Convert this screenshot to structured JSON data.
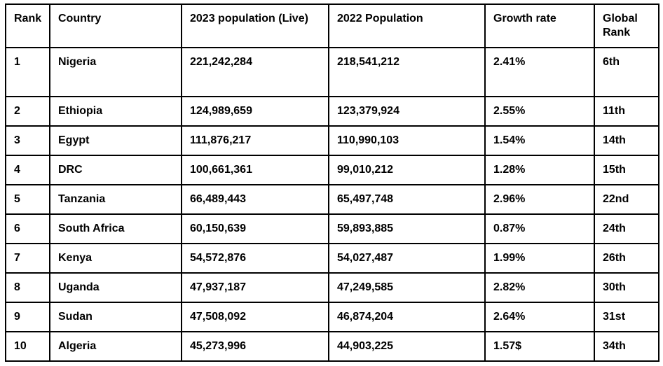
{
  "page": {
    "background_color": "#ffffff",
    "border_color": "#000000",
    "text_color": "#000000"
  },
  "table": {
    "title_semantic": "Top 10 African countries by population",
    "header_row": [
      "Rank",
      "Country",
      "2023 population (Live)",
      "2022 Population",
      "Growth rate",
      "Global Rank"
    ],
    "rows": [
      [
        "1",
        "Nigeria",
        "221,242,284",
        "218,541,212",
        "2.41%",
        "6th"
      ],
      [
        "2",
        "Ethiopia",
        "124,989,659",
        "123,379,924",
        "2.55%",
        "11th"
      ],
      [
        "3",
        "Egypt",
        "111,876,217",
        "110,990,103",
        "1.54%",
        "14th"
      ],
      [
        "4",
        "DRC",
        "100,661,361",
        "99,010,212",
        "1.28%",
        "15th"
      ],
      [
        "5",
        "Tanzania",
        "66,489,443",
        "65,497,748",
        "2.96%",
        "22nd"
      ],
      [
        "6",
        "South Africa",
        "60,150,639",
        "59,893,885",
        "0.87%",
        "24th"
      ],
      [
        "7",
        "Kenya",
        "54,572,876",
        "54,027,487",
        "1.99%",
        "26th"
      ],
      [
        "8",
        "Uganda",
        "47,937,187",
        "47,249,585",
        "2.82%",
        "30th"
      ],
      [
        "9",
        "Sudan",
        "47,508,092",
        "46,874,204",
        "2.64%",
        "31st"
      ],
      [
        "10",
        "Algeria",
        "45,273,996",
        "44,903,225",
        "1.57$",
        "34th"
      ]
    ]
  },
  "chart_data": {
    "type": "table",
    "columns": [
      "Rank",
      "Country",
      "2023 population (Live)",
      "2022 Population",
      "Growth rate",
      "Global Rank"
    ],
    "rows": [
      {
        "rank": "1",
        "country": "Nigeria",
        "population_2023": "221,242,284",
        "population_2022": "218,541,212",
        "growth_rate": "2.41%",
        "global_rank": "6th"
      },
      {
        "rank": "2",
        "country": "Ethiopia",
        "population_2023": "124,989,659",
        "population_2022": "123,379,924",
        "growth_rate": "2.55%",
        "global_rank": "11th"
      },
      {
        "rank": "3",
        "country": "Egypt",
        "population_2023": "111,876,217",
        "population_2022": "110,990,103",
        "growth_rate": "1.54%",
        "global_rank": "14th"
      },
      {
        "rank": "4",
        "country": "DRC",
        "population_2023": "100,661,361",
        "population_2022": "99,010,212",
        "growth_rate": "1.28%",
        "global_rank": "15th"
      },
      {
        "rank": "5",
        "country": "Tanzania",
        "population_2023": "66,489,443",
        "population_2022": "65,497,748",
        "growth_rate": "2.96%",
        "global_rank": "22nd"
      },
      {
        "rank": "6",
        "country": "South Africa",
        "population_2023": "60,150,639",
        "population_2022": "59,893,885",
        "growth_rate": "0.87%",
        "global_rank": "24th"
      },
      {
        "rank": "7",
        "country": "Kenya",
        "population_2023": "54,572,876",
        "population_2022": "54,027,487",
        "growth_rate": "1.99%",
        "global_rank": "26th"
      },
      {
        "rank": "8",
        "country": "Uganda",
        "population_2023": "47,937,187",
        "population_2022": "47,249,585",
        "growth_rate": "2.82%",
        "global_rank": "30th"
      },
      {
        "rank": "9",
        "country": "Sudan",
        "population_2023": "47,508,092",
        "population_2022": "46,874,204",
        "growth_rate": "2.64%",
        "global_rank": "31st"
      },
      {
        "rank": "10",
        "country": "Algeria",
        "population_2023": "45,273,996",
        "population_2022": "44,903,225",
        "growth_rate": "1.57$",
        "global_rank": "34th"
      }
    ]
  }
}
